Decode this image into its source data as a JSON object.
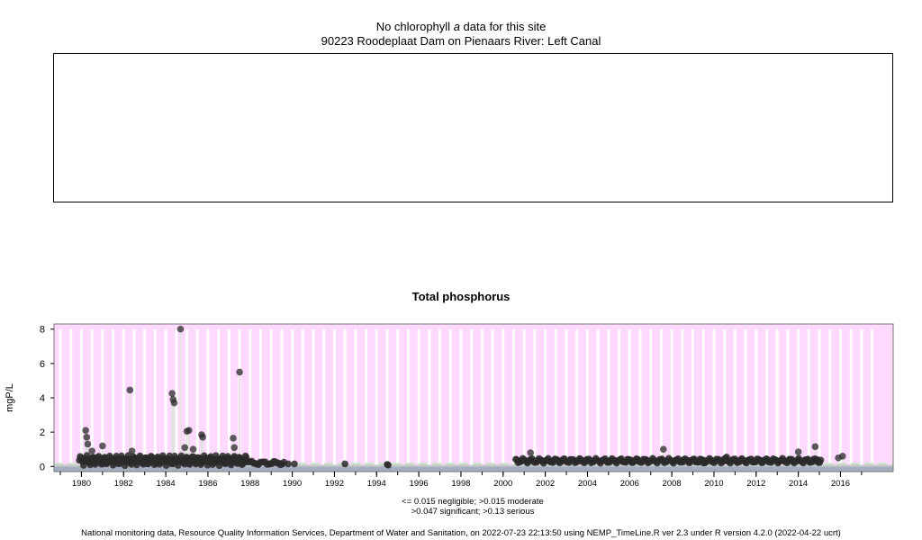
{
  "header": {
    "line1_prefix": "No chlorophyll ",
    "line1_italic": "a",
    "line1_suffix": " data for this site",
    "line2": "90223 Roodeplaat Dam on Pienaars River: Left Canal"
  },
  "colors": {
    "plot_bg": "#ffd9ff",
    "stripe": "#ffffff",
    "points": "#2a2a2a",
    "negligible_band": "#9aa8b8",
    "moderate_line": "#c9e4c9",
    "serious_line": "#c8c8c8"
  },
  "thresholds_note": {
    "line1": "<= 0.015 negligible; >0.015 moderate",
    "line2": ">0.047 significant; >0.13 serious"
  },
  "footer": "National monitoring data, Resource Quality Information Services, Department of Water and Sanitation, on 2022-07-23 22:13:50 using NEMP_TimeLine.R ver 2.3 under R version 4.2.0 (2022-04-22 ucrt)",
  "chart_data": {
    "type": "scatter",
    "title": "Total phosphorus",
    "xlabel": "",
    "ylabel": "mgP/L",
    "xlim": [
      1978.7,
      2018.5
    ],
    "ylim": [
      -0.3,
      8.3
    ],
    "xticks": [
      1980,
      1982,
      1984,
      1986,
      1988,
      1990,
      1992,
      1994,
      1996,
      1998,
      2000,
      2002,
      2004,
      2006,
      2008,
      2010,
      2012,
      2014,
      2016
    ],
    "yticks": [
      0,
      2,
      4,
      6,
      8
    ],
    "thresholds": {
      "negligible": 0.015,
      "moderate": 0.015,
      "significant": 0.047,
      "serious": 0.13
    },
    "spikes": [
      [
        1980.2,
        2.1
      ],
      [
        1980.25,
        1.7
      ],
      [
        1980.3,
        1.3
      ],
      [
        1980.5,
        0.9
      ],
      [
        1981.0,
        1.2
      ],
      [
        1982.3,
        4.45
      ],
      [
        1982.4,
        0.9
      ],
      [
        1984.3,
        4.25
      ],
      [
        1984.35,
        3.9
      ],
      [
        1984.4,
        3.7
      ],
      [
        1984.7,
        8.0
      ],
      [
        1984.9,
        1.1
      ],
      [
        1985.0,
        2.05
      ],
      [
        1985.1,
        2.1
      ],
      [
        1985.3,
        1.0
      ],
      [
        1985.7,
        1.85
      ],
      [
        1985.75,
        1.7
      ],
      [
        1987.2,
        1.65
      ],
      [
        1987.25,
        1.1
      ],
      [
        1987.5,
        5.5
      ],
      [
        2001.3,
        0.8
      ],
      [
        2007.6,
        1.0
      ],
      [
        2014.0,
        0.85
      ],
      [
        2014.8,
        1.15
      ],
      [
        2014.9,
        0.4
      ],
      [
        2015.9,
        0.5
      ],
      [
        2016.1,
        0.6
      ]
    ],
    "dense_segments": [
      {
        "start": 1979.9,
        "end": 1987.9,
        "base": 0.35,
        "amp": 0.25,
        "step": 0.04
      },
      {
        "start": 1988.0,
        "end": 1989.6,
        "base": 0.2,
        "amp": 0.1,
        "step": 0.08
      },
      {
        "start": 2000.6,
        "end": 2015.1,
        "base": 0.33,
        "amp": 0.12,
        "step": 0.055
      }
    ],
    "isolated_points": [
      [
        1989.8,
        0.15
      ],
      [
        1990.1,
        0.15
      ],
      [
        1992.5,
        0.15
      ],
      [
        1994.5,
        0.12
      ],
      [
        1994.55,
        0.08
      ],
      [
        2009.5,
        0.2
      ],
      [
        2010.5,
        0.45
      ],
      [
        2010.6,
        0.55
      ]
    ]
  }
}
